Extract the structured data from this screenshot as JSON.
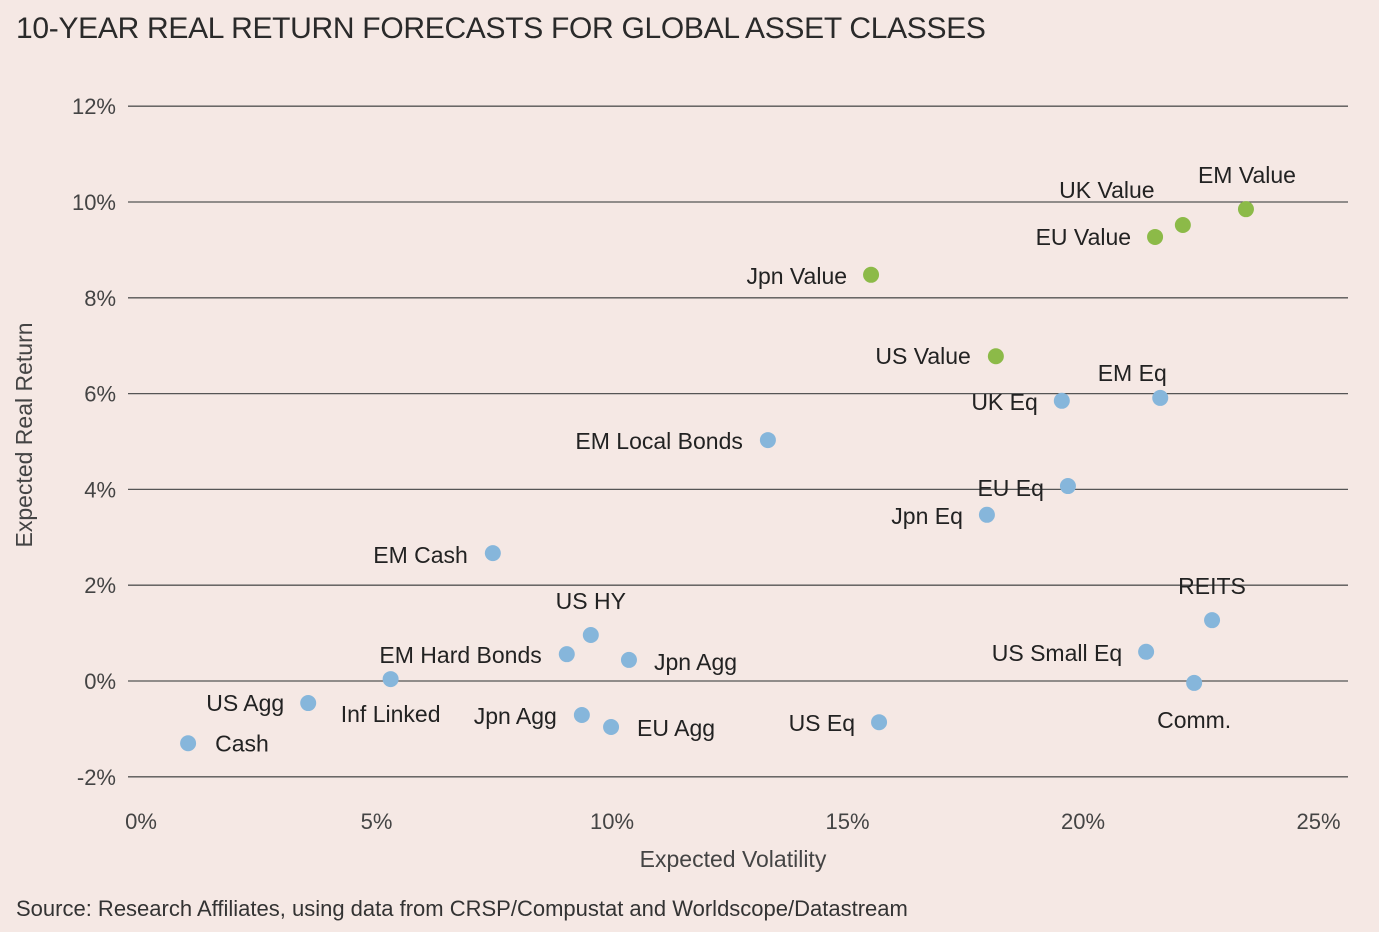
{
  "chart_data": {
    "type": "scatter",
    "title": "10-YEAR REAL RETURN FORECASTS FOR GLOBAL ASSET CLASSES",
    "xlabel": "Expected Volatility",
    "ylabel": "Expected Real Return",
    "xlim": [
      0,
      25
    ],
    "ylim": [
      -2,
      12
    ],
    "x_ticks": [
      0,
      5,
      10,
      15,
      20,
      25
    ],
    "x_tick_labels": [
      "0%",
      "5%",
      "10%",
      "15%",
      "20%",
      "25%"
    ],
    "y_ticks": [
      12,
      10,
      8,
      6,
      4,
      2,
      0,
      -2
    ],
    "y_tick_labels": [
      "12%",
      "10%",
      "8%",
      "6%",
      "4%",
      "2%",
      "0%",
      "-2%"
    ],
    "grid": "horizontal",
    "colors": {
      "value": "#8cba48",
      "other": "#86b6db"
    },
    "points": [
      {
        "label": "Cash",
        "x": 1.0,
        "y": -1.3,
        "group": "other"
      },
      {
        "label": "US Agg",
        "x": 3.55,
        "y": -0.46,
        "group": "other"
      },
      {
        "label": "Inf Linked",
        "x": 5.3,
        "y": 0.04,
        "group": "other"
      },
      {
        "label": "EM Cash",
        "x": 7.47,
        "y": 2.67,
        "group": "other"
      },
      {
        "label": "EM Hard Bonds",
        "x": 9.04,
        "y": 0.56,
        "group": "other"
      },
      {
        "label": "US HY",
        "x": 9.55,
        "y": 0.96,
        "group": "other"
      },
      {
        "label": "Jpn Agg",
        "x": 10.36,
        "y": 0.44,
        "group": "other"
      },
      {
        "label": "Jpn Agg",
        "x": 9.36,
        "y": -0.71,
        "group": "other"
      },
      {
        "label": "EU Agg",
        "x": 9.98,
        "y": -0.96,
        "group": "other"
      },
      {
        "label": "US Eq",
        "x": 15.67,
        "y": -0.86,
        "group": "other"
      },
      {
        "label": "EM Local Bonds",
        "x": 13.31,
        "y": 5.03,
        "group": "other"
      },
      {
        "label": "Jpn Value",
        "x": 15.5,
        "y": 8.48,
        "group": "value"
      },
      {
        "label": "US Value",
        "x": 18.15,
        "y": 6.78,
        "group": "value"
      },
      {
        "label": "UK Eq",
        "x": 19.55,
        "y": 5.85,
        "group": "other"
      },
      {
        "label": "EM Eq",
        "x": 21.64,
        "y": 5.91,
        "group": "other"
      },
      {
        "label": "EU Eq",
        "x": 19.68,
        "y": 4.07,
        "group": "other"
      },
      {
        "label": "Jpn Eq",
        "x": 17.96,
        "y": 3.47,
        "group": "other"
      },
      {
        "label": "EU Value",
        "x": 21.53,
        "y": 9.27,
        "group": "value"
      },
      {
        "label": "UK Value",
        "x": 22.12,
        "y": 9.52,
        "group": "value"
      },
      {
        "label": "EM Value",
        "x": 23.46,
        "y": 9.85,
        "group": "value"
      },
      {
        "label": "REITS",
        "x": 22.74,
        "y": 1.27,
        "group": "other"
      },
      {
        "label": "US Small Eq",
        "x": 21.34,
        "y": 0.61,
        "group": "other"
      },
      {
        "label": "Comm.",
        "x": 22.36,
        "y": -0.04,
        "group": "other"
      }
    ],
    "source": "Source: Research Affiliates, using data from CRSP/Compustat and Worldscope/Datastream"
  }
}
